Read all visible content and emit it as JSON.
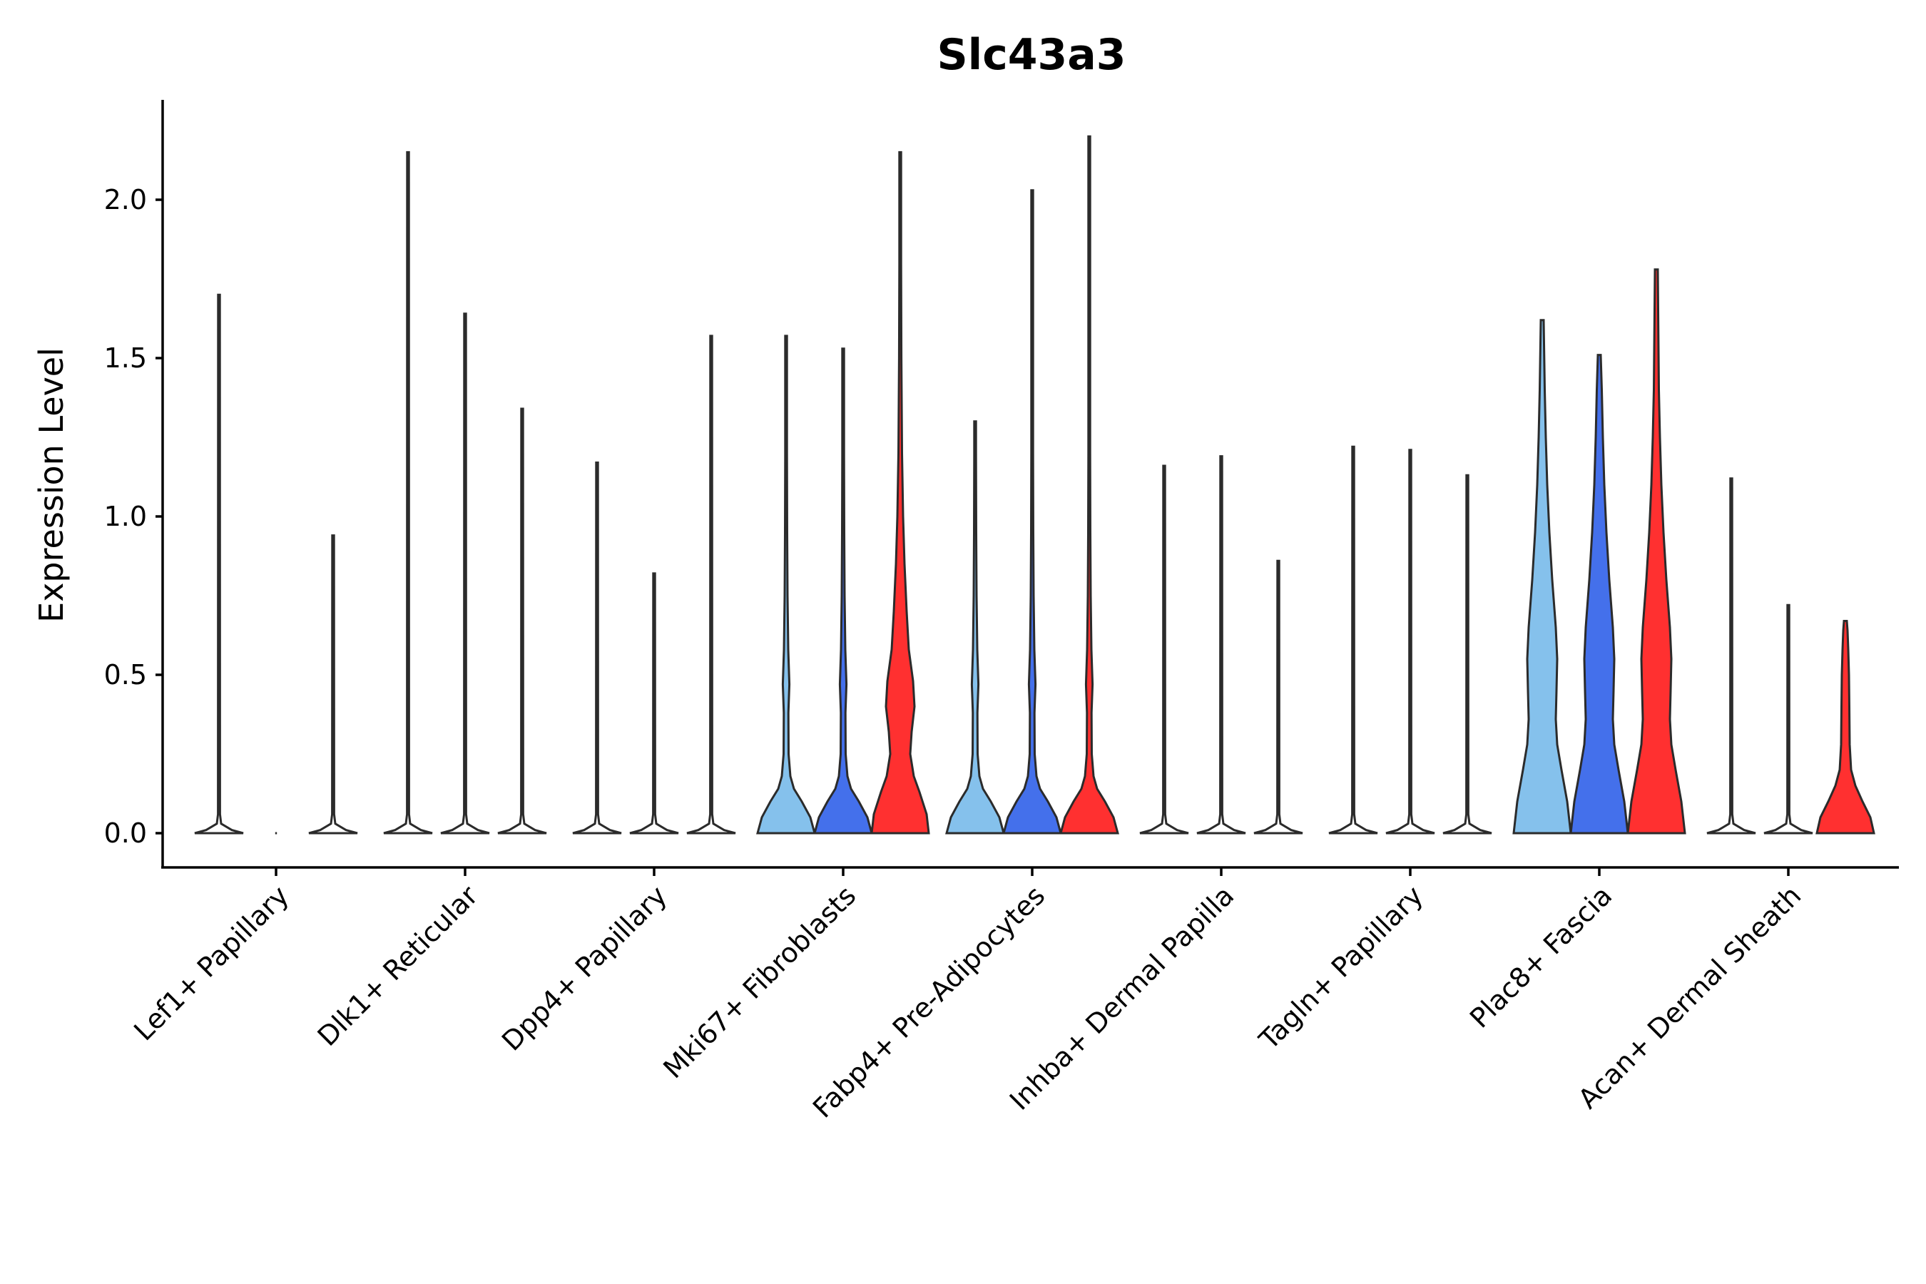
{
  "chart_data": {
    "type": "violin",
    "title": "Slc43a3",
    "xlabel": "",
    "ylabel": "Expression Level",
    "ylim": [
      -0.11,
      2.32
    ],
    "yticks": [
      "0.0",
      "0.5",
      "1.0",
      "1.5",
      "2.0"
    ],
    "yticks_values": [
      0,
      0.5,
      1.0,
      1.5,
      2.0
    ],
    "grid": false,
    "legend": "none",
    "split_series_colors": [
      "#85C1EC",
      "#4470EB",
      "#FF3030"
    ],
    "categories": [
      "Lef1+ Papillary",
      "Dlk1+ Reticular",
      "Dpp4+ Papillary",
      "Mki67+ Fibroblasts",
      "Fabp4+ Pre-Adipocytes",
      "Inhba+ Dermal Papilla",
      "Tagln+ Papillary",
      "Plac8+ Fascia",
      "Acan+ Dermal Sheath"
    ],
    "violins": [
      {
        "group": "Lef1+ Papillary",
        "sub": 0,
        "max": 1.7,
        "shape": "flat"
      },
      {
        "group": "Lef1+ Papillary",
        "sub": 1,
        "max": 0.0,
        "shape": "flat"
      },
      {
        "group": "Lef1+ Papillary",
        "sub": 2,
        "max": 0.94,
        "shape": "flat"
      },
      {
        "group": "Dlk1+ Reticular",
        "sub": 0,
        "max": 2.15,
        "shape": "flat"
      },
      {
        "group": "Dlk1+ Reticular",
        "sub": 1,
        "max": 1.64,
        "shape": "flat"
      },
      {
        "group": "Dlk1+ Reticular",
        "sub": 2,
        "max": 1.34,
        "shape": "flat"
      },
      {
        "group": "Dpp4+ Papillary",
        "sub": 0,
        "max": 1.17,
        "shape": "flat"
      },
      {
        "group": "Dpp4+ Papillary",
        "sub": 1,
        "max": 0.82,
        "shape": "flat"
      },
      {
        "group": "Dpp4+ Papillary",
        "sub": 2,
        "max": 1.57,
        "shape": "flat"
      },
      {
        "group": "Mki67+ Fibroblasts",
        "sub": 0,
        "max": 1.57,
        "shape": "small"
      },
      {
        "group": "Mki67+ Fibroblasts",
        "sub": 1,
        "max": 1.53,
        "shape": "small"
      },
      {
        "group": "Mki67+ Fibroblasts",
        "sub": 2,
        "max": 2.15,
        "shape": "medium"
      },
      {
        "group": "Fabp4+ Pre-Adipocytes",
        "sub": 0,
        "max": 1.3,
        "shape": "small"
      },
      {
        "group": "Fabp4+ Pre-Adipocytes",
        "sub": 1,
        "max": 2.03,
        "shape": "small"
      },
      {
        "group": "Fabp4+ Pre-Adipocytes",
        "sub": 2,
        "max": 2.2,
        "shape": "small"
      },
      {
        "group": "Inhba+ Dermal Papilla",
        "sub": 0,
        "max": 1.16,
        "shape": "flat"
      },
      {
        "group": "Inhba+ Dermal Papilla",
        "sub": 1,
        "max": 1.19,
        "shape": "flat"
      },
      {
        "group": "Inhba+ Dermal Papilla",
        "sub": 2,
        "max": 0.86,
        "shape": "flat"
      },
      {
        "group": "Tagln+ Papillary",
        "sub": 0,
        "max": 1.22,
        "shape": "flat"
      },
      {
        "group": "Tagln+ Papillary",
        "sub": 1,
        "max": 1.21,
        "shape": "flat"
      },
      {
        "group": "Tagln+ Papillary",
        "sub": 2,
        "max": 1.13,
        "shape": "flat"
      },
      {
        "group": "Plac8+ Fascia",
        "sub": 0,
        "max": 1.62,
        "shape": "wide"
      },
      {
        "group": "Plac8+ Fascia",
        "sub": 1,
        "max": 1.51,
        "shape": "wide"
      },
      {
        "group": "Plac8+ Fascia",
        "sub": 2,
        "max": 1.78,
        "shape": "wide"
      },
      {
        "group": "Acan+ Dermal Sheath",
        "sub": 0,
        "max": 1.12,
        "shape": "flat"
      },
      {
        "group": "Acan+ Dermal Sheath",
        "sub": 1,
        "max": 0.72,
        "shape": "flat"
      },
      {
        "group": "Acan+ Dermal Sheath",
        "sub": 2,
        "max": 0.67,
        "shape": "lowbulb"
      }
    ]
  }
}
